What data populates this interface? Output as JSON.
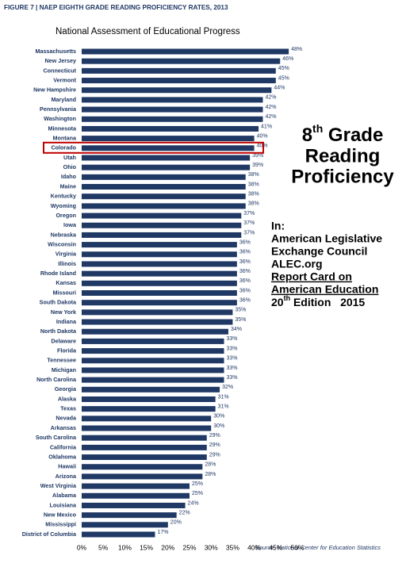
{
  "chart_data": {
    "type": "barh",
    "title": "FIGURE 7 | NAEP EIGHTH GRADE READING PROFICIENCY RATES, 2013",
    "subtitle": "National Assessment of Educational Progress",
    "source": "Source: National Center for Education Statistics",
    "color": "#1f3864",
    "categories": [
      "Massachusetts",
      "New Jersey",
      "Connecticut",
      "Vermont",
      "New Hampshire",
      "Maryland",
      "Pennsylvania",
      "Washington",
      "Minnesota",
      "Montana",
      "Colorado",
      "Utah",
      "Ohio",
      "Idaho",
      "Maine",
      "Kentucky",
      "Wyoming",
      "Oregon",
      "Iowa",
      "Nebraska",
      "Wisconsin",
      "Virginia",
      "Illinois",
      "Rhode Island",
      "Kansas",
      "Missouri",
      "South Dakota",
      "New York",
      "Indiana",
      "North Dakota",
      "Delaware",
      "Florida",
      "Tennessee",
      "Michigan",
      "North Carolina",
      "Georgia",
      "Alaska",
      "Texas",
      "Nevada",
      "Arkansas",
      "South Carolina",
      "California",
      "Oklahoma",
      "Hawaii",
      "Arizona",
      "West Virginia",
      "Alabama",
      "Louisiana",
      "New Mexico",
      "Mississippi",
      "District of Columbia"
    ],
    "values": [
      48,
      46,
      45,
      45,
      44,
      42,
      42,
      42,
      41,
      40,
      40,
      39,
      39,
      38,
      38,
      38,
      38,
      37,
      37,
      37,
      36,
      36,
      36,
      36,
      36,
      36,
      36,
      35,
      35,
      34,
      33,
      33,
      33,
      33,
      33,
      32,
      31,
      31,
      30,
      30,
      29,
      29,
      29,
      28,
      28,
      25,
      25,
      24,
      22,
      20,
      17
    ],
    "value_labels": [
      "48%",
      "46%",
      "45%",
      "45%",
      "44%",
      "42%",
      "42%",
      "42%",
      "41%",
      "40%",
      "40%",
      "39%",
      "39%",
      "38%",
      "38%",
      "38%",
      "38%",
      "37%",
      "37%",
      "37%",
      "36%",
      "36%",
      "36%",
      "36%",
      "36%",
      "36%",
      "36%",
      "35%",
      "35%",
      "34%",
      "33%",
      "33%",
      "33%",
      "33%",
      "33%",
      "32%",
      "31%",
      "31%",
      "30%",
      "30%",
      "29%",
      "29%",
      "29%",
      "28%",
      "28%",
      "25%",
      "25%",
      "24%",
      "22%",
      "20%",
      "17%"
    ],
    "xlim": [
      0,
      50
    ],
    "xticks": [
      {
        "value": 0,
        "label": "0%"
      },
      {
        "value": 5,
        "label": "5%"
      },
      {
        "value": 10,
        "label": "10%"
      },
      {
        "value": 15,
        "label": "15%"
      },
      {
        "value": 20,
        "label": "20%"
      },
      {
        "value": 25,
        "label": "25%"
      },
      {
        "value": 30,
        "label": "30%"
      },
      {
        "value": 35,
        "label": "35%"
      },
      {
        "value": 40,
        "label": "40%"
      },
      {
        "value": 45,
        "label": "45%"
      },
      {
        "value": 50,
        "label": "50%"
      }
    ],
    "headline": {
      "line1_number": "8",
      "line1_sup": "th",
      "line1_rest": " Grade",
      "line2": "Reading",
      "line3": "Proficiency"
    },
    "citation": {
      "lines": [
        "In:",
        "American Legislative",
        "Exchange Council",
        "ALEC.org",
        "Report Card on",
        "American Education"
      ],
      "edition_number": "20",
      "edition_sup": "th",
      "edition_rest": " Edition   2015"
    }
  }
}
